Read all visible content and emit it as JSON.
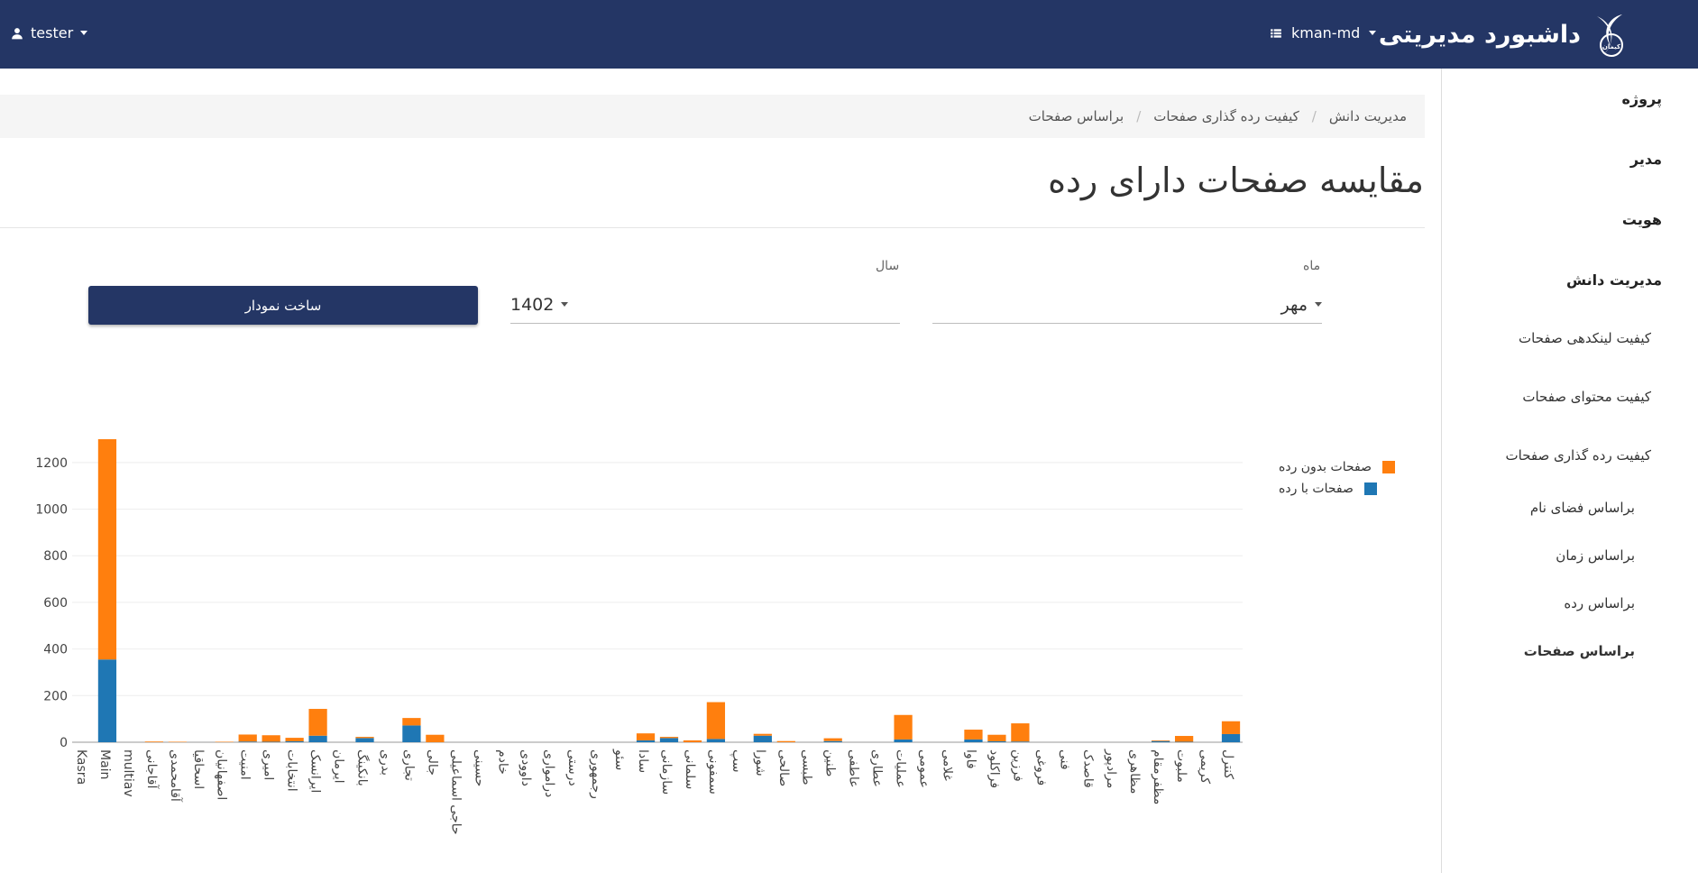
{
  "header": {
    "user": "tester",
    "project": "kman-md",
    "brand": "داشبورد مدیریتی",
    "logo_sub": "کیمان"
  },
  "sidebar": {
    "items": [
      {
        "label": "پروژه",
        "level": 0
      },
      {
        "label": "مدیر",
        "level": 0
      },
      {
        "label": "هویت",
        "level": 0
      },
      {
        "label": "مدیریت دانش",
        "level": 0
      },
      {
        "label": "کیفیت لینکدهی صفحات",
        "level": 1
      },
      {
        "label": "کیفیت محتوای صفحات",
        "level": 1
      },
      {
        "label": "کیفیت رده گذاری صفحات",
        "level": 1
      },
      {
        "label": "براساس فضای نام",
        "level": 2
      },
      {
        "label": "براساس زمان",
        "level": 2
      },
      {
        "label": "براساس رده",
        "level": 2
      },
      {
        "label": "براساس صفحات",
        "level": 2
      }
    ]
  },
  "breadcrumb": [
    "مدیریت دانش",
    "کیفیت رده گذاری صفحات",
    "براساس صفحات"
  ],
  "page_title": "مقایسه صفحات دارای رده",
  "filters": {
    "month_label": "ماه",
    "month_value": "مهر",
    "year_label": "سال",
    "year_value": "1402",
    "build_button": "ساخت نمودار"
  },
  "colors": {
    "navy": "#243665",
    "with": "#1f77b4",
    "without": "#ff7f0e"
  },
  "chart_data": {
    "type": "bar",
    "stacked": true,
    "ylim": [
      0,
      1300
    ],
    "yticks": [
      0,
      200,
      400,
      600,
      800,
      1000,
      1200
    ],
    "grid": true,
    "legend": "top-right",
    "categories": [
      "Kasra",
      "Main",
      "multiav",
      "آقاجانی",
      "آقامحمدی",
      "اسحاقیا",
      "اصفهانیان",
      "امنیت",
      "امیری",
      "انتخابات",
      "ایرانسک",
      "ایرمان",
      "بانکینگ",
      "بدری",
      "تجاری",
      "جالی",
      "حاجی اسماعیلی",
      "حسینی",
      "خادم",
      "داوودی",
      "درامواری",
      "درستی",
      "رجمهوری",
      "سئو",
      "سادا",
      "سازمانی",
      "سلمانی",
      "سمفونی",
      "سپ",
      "شورا",
      "صالحی",
      "طبسی",
      "طنین",
      "عاطفی",
      "عطاری",
      "عملیات",
      "عمومی",
      "غلامی",
      "فاوا",
      "فراکلود",
      "فرزین",
      "فروغی",
      "فنی",
      "قاصدک",
      "مرادپور",
      "مظاهری",
      "مظفرمقام",
      "ملبوت",
      "کریمی",
      "کنترل"
    ],
    "series": [
      {
        "name": "صفحات با رده",
        "values": [
          0,
          355,
          0,
          0,
          0,
          0,
          0,
          3,
          2,
          4,
          28,
          0,
          18,
          0,
          72,
          0,
          0,
          0,
          0,
          0,
          0,
          0,
          0,
          0,
          8,
          18,
          0,
          14,
          0,
          28,
          0,
          0,
          5,
          0,
          0,
          12,
          0,
          0,
          12,
          4,
          3,
          0,
          0,
          0,
          0,
          0,
          5,
          2,
          0,
          35
        ]
      },
      {
        "name": "صفحات بدون رده",
        "values": [
          0,
          945,
          0,
          3,
          2,
          0,
          2,
          30,
          28,
          15,
          115,
          0,
          5,
          0,
          32,
          32,
          0,
          0,
          0,
          0,
          0,
          0,
          0,
          0,
          30,
          5,
          8,
          158,
          0,
          8,
          5,
          0,
          12,
          0,
          0,
          105,
          0,
          0,
          42,
          28,
          78,
          0,
          0,
          0,
          0,
          0,
          3,
          25,
          0,
          55
        ]
      }
    ]
  }
}
